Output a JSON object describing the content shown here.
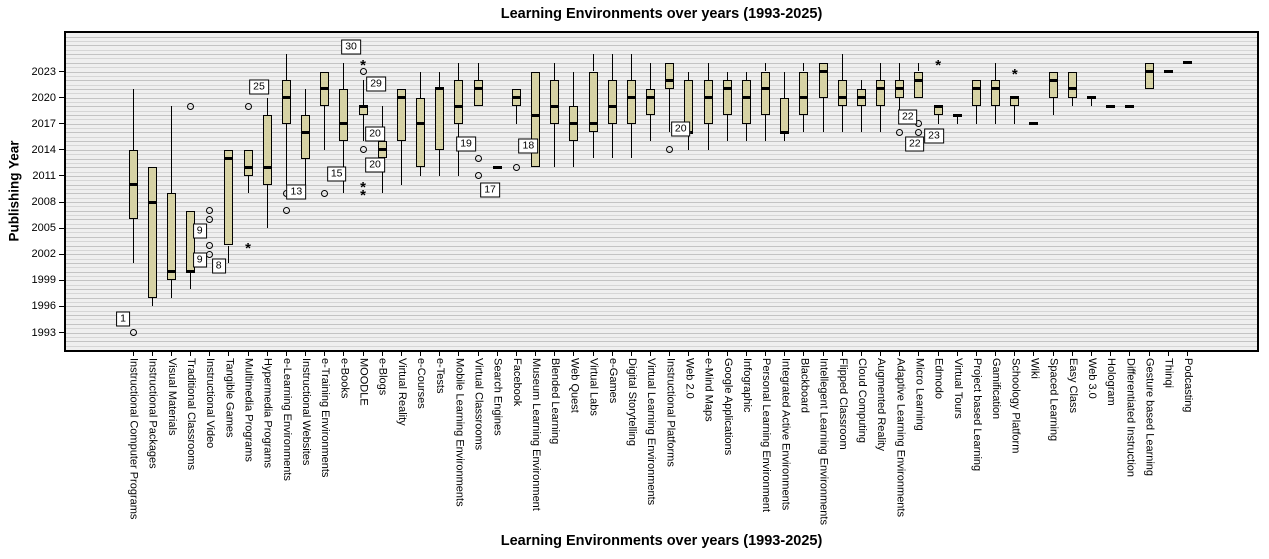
{
  "chart_data": {
    "type": "boxplot",
    "title": "Learning Environments over years (1993-2025)",
    "xlabel": "Learning Environments over years (1993-2025)",
    "ylabel": "Publishing Year",
    "y_ticks": [
      1993,
      1996,
      1999,
      2002,
      2005,
      2008,
      2011,
      2014,
      2017,
      2020,
      2023
    ],
    "ylim": [
      1991,
      2027
    ],
    "grid": "horizontal",
    "legend": "none",
    "box_fill_color": "#D6D2A4",
    "plot_bg_color": "#EFEFEF",
    "categories": [
      "Instructional Computer Programs",
      "Instructional Packages",
      "Visual Materials",
      "Traditional Classrooms",
      "Instructional Video",
      "Tangible Games",
      "Multimedia Programs",
      "Hypermedia Programs",
      "e-Learning Environments",
      "Instructional Websites",
      "e-Training Environments",
      "e-Books",
      "MOODLE",
      "e-Blogs",
      "Virtual Reality",
      "e-Courses",
      "e-Tests",
      "Mobile Learning Environments",
      "Virtual Classrooms",
      "Search Engines",
      "Facebook",
      "Museum Learning Environment",
      "Blended Learning",
      "Web Quest",
      "Virtual Labs",
      "e-Games",
      "Digital Storytelling",
      "Virtual Learning Environments",
      "Instructional Platforms",
      "Web 2.0",
      "e-Mind Maps",
      "Google Applications",
      "Infographic",
      "Personal Learning Environment",
      "Integrated Active Environments",
      "Blackboard",
      "Intellegent Learning Environments",
      "Flipped Classroom",
      "Cloud Computing",
      "Augmented Reality",
      "Adaptive Learning Environments",
      "Micro Learning",
      "Edmodo",
      "Virtual Tours",
      "Project based Learning",
      "Gamification",
      "Schoology Platform",
      "Wiki",
      "Spaced Learning",
      "Easy Class",
      "Web 3.0",
      "Hologram",
      "Differentiated Instruction",
      "Gesture based Learning",
      "Thinqi",
      "Podcasting"
    ],
    "boxes": [
      {
        "low": 2001,
        "q1": 2006,
        "median": 2010,
        "q3": 2014,
        "high": 2021,
        "outliers": [
          {
            "year": 1993,
            "marker": "circle"
          }
        ]
      },
      {
        "low": 1996,
        "q1": 1997,
        "median": 2008,
        "q3": 2012,
        "high": null,
        "outliers": []
      },
      {
        "low": 1997,
        "q1": 1999,
        "median": 2000,
        "q3": 2009,
        "high": 2019,
        "outliers": []
      },
      {
        "low": 1998,
        "q1": 2000,
        "median": 2000,
        "q3": 2007,
        "high": null,
        "outliers": [
          {
            "year": 2019,
            "marker": "circle"
          }
        ]
      },
      {
        "low": null,
        "q1": null,
        "median": null,
        "q3": null,
        "high": null,
        "outliers": [
          {
            "year": 2007,
            "marker": "circle"
          },
          {
            "year": 2006,
            "marker": "circle"
          },
          {
            "year": 2003,
            "marker": "circle"
          },
          {
            "year": 2002,
            "marker": "circle"
          }
        ]
      },
      {
        "low": 2001,
        "q1": 2003,
        "median": 2013,
        "q3": 2014,
        "high": null,
        "outliers": []
      },
      {
        "low": 2009,
        "q1": 2011,
        "median": 2012,
        "q3": 2014,
        "high": null,
        "outliers": [
          {
            "year": 2019,
            "marker": "circle"
          },
          {
            "year": 2003,
            "marker": "asterisk"
          }
        ]
      },
      {
        "low": 2005,
        "q1": 2010,
        "median": 2012,
        "q3": 2018,
        "high": 2020,
        "outliers": []
      },
      {
        "low": 2010,
        "q1": 2017,
        "median": 2020,
        "q3": 2022,
        "high": 2025,
        "outliers": [
          {
            "year": 2009,
            "marker": "circle"
          },
          {
            "year": 2007,
            "marker": "circle"
          }
        ]
      },
      {
        "low": 2009,
        "q1": 2013,
        "median": 2016,
        "q3": 2018,
        "high": 2021,
        "outliers": []
      },
      {
        "low": 2014,
        "q1": 2019,
        "median": 2021,
        "q3": 2023,
        "high": null,
        "outliers": [
          {
            "year": 2009,
            "marker": "circle"
          }
        ]
      },
      {
        "low": 2009,
        "q1": 2015,
        "median": 2017,
        "q3": 2021,
        "high": 2024,
        "outliers": []
      },
      {
        "low": 2015,
        "q1": 2018,
        "median": 2019,
        "q3": 2019,
        "high": 2022,
        "outliers": [
          {
            "year": 2024,
            "marker": "asterisk"
          },
          {
            "year": 2023,
            "marker": "circle"
          },
          {
            "year": 2014,
            "marker": "circle"
          },
          {
            "year": 2010,
            "marker": "asterisk"
          },
          {
            "year": 2009,
            "marker": "asterisk"
          }
        ]
      },
      {
        "low": 2009,
        "q1": 2013,
        "median": 2014,
        "q3": 2015,
        "high": 2019,
        "outliers": []
      },
      {
        "low": 2010,
        "q1": 2015,
        "median": 2020,
        "q3": 2021,
        "high": null,
        "outliers": []
      },
      {
        "low": 2011,
        "q1": 2012,
        "median": 2017,
        "q3": 2020,
        "high": 2023,
        "outliers": []
      },
      {
        "low": 2011,
        "q1": 2014,
        "median": 2021,
        "q3": 2021,
        "high": 2023,
        "outliers": []
      },
      {
        "low": 2011,
        "q1": 2017,
        "median": 2019,
        "q3": 2022,
        "high": 2024,
        "outliers": []
      },
      {
        "low": null,
        "q1": 2019,
        "median": 2021,
        "q3": 2022,
        "high": 2024,
        "outliers": [
          {
            "year": 2013,
            "marker": "circle"
          },
          {
            "year": 2011,
            "marker": "circle"
          }
        ]
      },
      {
        "low": null,
        "q1": null,
        "median": 2012,
        "q3": null,
        "high": null,
        "outliers": []
      },
      {
        "low": 2017,
        "q1": 2019,
        "median": 2020,
        "q3": 2021,
        "high": null,
        "outliers": [
          {
            "year": 2012,
            "marker": "circle"
          }
        ]
      },
      {
        "low": null,
        "q1": 2012,
        "median": 2018,
        "q3": 2023,
        "high": null,
        "outliers": []
      },
      {
        "low": 2012,
        "q1": 2017,
        "median": 2019,
        "q3": 2022,
        "high": 2024,
        "outliers": []
      },
      {
        "low": 2012,
        "q1": 2015,
        "median": 2017,
        "q3": 2019,
        "high": 2023,
        "outliers": []
      },
      {
        "low": 2013,
        "q1": 2016,
        "median": 2017,
        "q3": 2023,
        "high": 2025,
        "outliers": []
      },
      {
        "low": 2013,
        "q1": 2017,
        "median": 2019,
        "q3": 2022,
        "high": 2025,
        "outliers": []
      },
      {
        "low": 2013,
        "q1": 2017,
        "median": 2020,
        "q3": 2022,
        "high": 2025,
        "outliers": []
      },
      {
        "low": 2015,
        "q1": 2018,
        "median": 2020,
        "q3": 2021,
        "high": 2024,
        "outliers": []
      },
      {
        "low": 2016,
        "q1": 2021,
        "median": 2022,
        "q3": 2024,
        "high": null,
        "outliers": [
          {
            "year": 2014,
            "marker": "circle"
          }
        ]
      },
      {
        "low": 2014,
        "q1": 2016,
        "median": 2016,
        "q3": 2022,
        "high": 2023,
        "outliers": []
      },
      {
        "low": 2014,
        "q1": 2017,
        "median": 2020,
        "q3": 2022,
        "high": 2024,
        "outliers": []
      },
      {
        "low": 2015,
        "q1": 2018,
        "median": 2021,
        "q3": 2022,
        "high": 2023,
        "outliers": []
      },
      {
        "low": 2015,
        "q1": 2017,
        "median": 2020,
        "q3": 2022,
        "high": 2023,
        "outliers": []
      },
      {
        "low": 2015,
        "q1": 2018,
        "median": 2021,
        "q3": 2023,
        "high": 2024,
        "outliers": []
      },
      {
        "low": 2015,
        "q1": 2016,
        "median": 2016,
        "q3": 2020,
        "high": 2023,
        "outliers": []
      },
      {
        "low": 2016,
        "q1": 2018,
        "median": 2020,
        "q3": 2023,
        "high": 2024,
        "outliers": []
      },
      {
        "low": 2016,
        "q1": 2020,
        "median": 2023,
        "q3": 2024,
        "high": null,
        "outliers": []
      },
      {
        "low": 2016,
        "q1": 2019,
        "median": 2020,
        "q3": 2022,
        "high": 2025,
        "outliers": []
      },
      {
        "low": 2016,
        "q1": 2019,
        "median": 2020,
        "q3": 2021,
        "high": 2022,
        "outliers": []
      },
      {
        "low": 2016,
        "q1": 2019,
        "median": 2021,
        "q3": 2022,
        "high": 2024,
        "outliers": []
      },
      {
        "low": 2017,
        "q1": 2020,
        "median": 2021,
        "q3": 2022,
        "high": 2024,
        "outliers": [
          {
            "year": 2016,
            "marker": "circle"
          }
        ]
      },
      {
        "low": null,
        "q1": 2020,
        "median": 2022,
        "q3": 2023,
        "high": 2024,
        "outliers": [
          {
            "year": 2017,
            "marker": "circle"
          },
          {
            "year": 2016,
            "marker": "circle"
          }
        ]
      },
      {
        "low": 2017,
        "q1": 2018,
        "median": 2019,
        "q3": 2019,
        "high": null,
        "outliers": [
          {
            "year": 2024,
            "marker": "asterisk"
          }
        ]
      },
      {
        "low": 2017,
        "q1": null,
        "median": 2018,
        "q3": null,
        "high": null,
        "outliers": []
      },
      {
        "low": 2017,
        "q1": 2019,
        "median": 2021,
        "q3": 2022,
        "high": null,
        "outliers": []
      },
      {
        "low": 2017,
        "q1": 2019,
        "median": 2021,
        "q3": 2022,
        "high": 2024,
        "outliers": []
      },
      {
        "low": 2017,
        "q1": 2019,
        "median": 2020,
        "q3": 2020,
        "high": null,
        "outliers": [
          {
            "year": 2023,
            "marker": "asterisk"
          }
        ]
      },
      {
        "low": null,
        "q1": null,
        "median": 2017,
        "q3": null,
        "high": null,
        "outliers": []
      },
      {
        "low": 2018,
        "q1": 2020,
        "median": 2022,
        "q3": 2023,
        "high": null,
        "outliers": []
      },
      {
        "low": 2019,
        "q1": 2020,
        "median": 2021,
        "q3": 2023,
        "high": null,
        "outliers": []
      },
      {
        "low": 2019,
        "q1": null,
        "median": 2020,
        "q3": null,
        "high": null,
        "outliers": []
      },
      {
        "low": null,
        "q1": null,
        "median": 2019,
        "q3": null,
        "high": null,
        "outliers": []
      },
      {
        "low": null,
        "q1": null,
        "median": 2019,
        "q3": null,
        "high": null,
        "outliers": []
      },
      {
        "low": null,
        "q1": 2021,
        "median": 2023,
        "q3": 2024,
        "high": null,
        "outliers": []
      },
      {
        "low": null,
        "q1": null,
        "median": 2023,
        "q3": null,
        "high": null,
        "outliers": []
      },
      {
        "low": null,
        "q1": null,
        "median": 2024,
        "q3": null,
        "high": null,
        "outliers": []
      }
    ],
    "annotations": [
      {
        "text": "1",
        "cat": 0,
        "year": 1994.5,
        "dx": -10
      },
      {
        "text": "9",
        "cat": 4,
        "year": 2004.7,
        "dx": -10
      },
      {
        "text": "9",
        "cat": 4,
        "year": 2001.3,
        "dx": -10
      },
      {
        "text": "8",
        "cat": 4,
        "year": 2000.6,
        "dx": 9
      },
      {
        "text": "25",
        "cat": 6,
        "year": 2021.2,
        "dx": 11
      },
      {
        "text": "13",
        "cat": 8,
        "year": 2009.1,
        "dx": 10
      },
      {
        "text": "15",
        "cat": 10,
        "year": 2011.2,
        "dx": 12
      },
      {
        "text": "30",
        "cat": 12,
        "year": 2025.8,
        "dx": -12
      },
      {
        "text": "29",
        "cat": 12,
        "year": 2021.6,
        "dx": 13
      },
      {
        "text": "20",
        "cat": 12,
        "year": 2015.8,
        "dx": 12
      },
      {
        "text": "20",
        "cat": 12,
        "year": 2012.3,
        "dx": 12
      },
      {
        "text": "19",
        "cat": 18,
        "year": 2014.7,
        "dx": -12
      },
      {
        "text": "17",
        "cat": 18,
        "year": 2009.4,
        "dx": 12
      },
      {
        "text": "18",
        "cat": 20,
        "year": 2014.4,
        "dx": 12
      },
      {
        "text": "20",
        "cat": 28,
        "year": 2016.4,
        "dx": 11
      },
      {
        "text": "22",
        "cat": 40,
        "year": 2017.8,
        "dx": 8
      },
      {
        "text": "22",
        "cat": 40,
        "year": 2014.7,
        "dx": 15
      },
      {
        "text": "23",
        "cat": 41,
        "year": 2015.6,
        "dx": 15
      }
    ]
  }
}
